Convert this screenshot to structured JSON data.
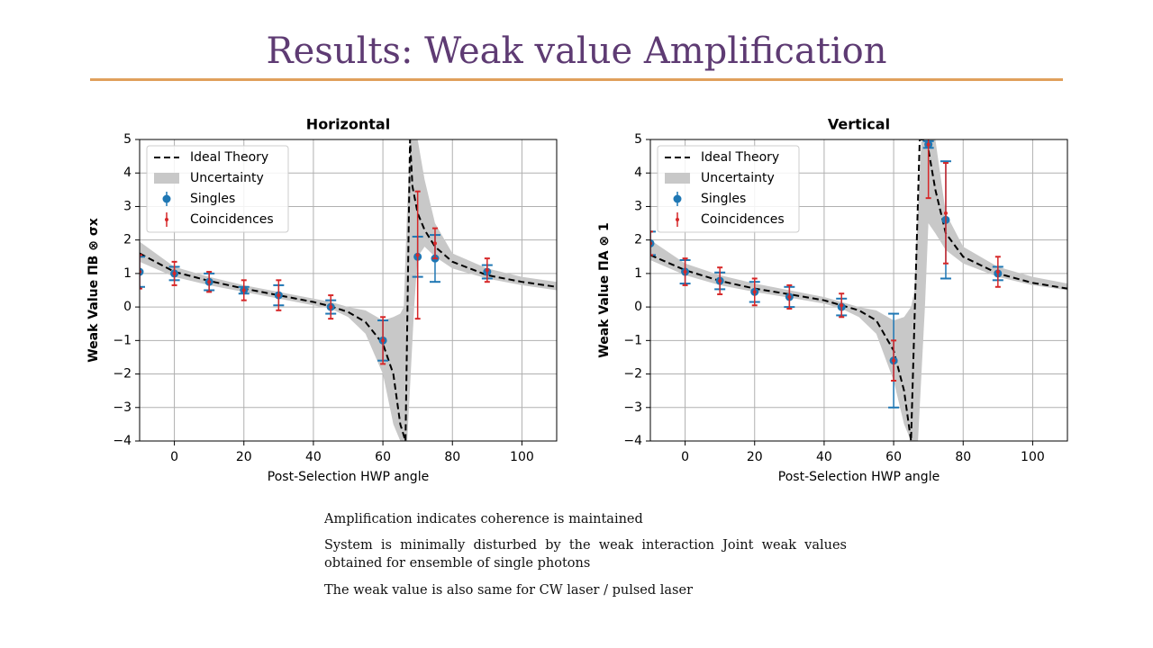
{
  "slide": {
    "title": "Results: Weak value Amplification",
    "paragraphs": [
      "Amplification indicates coherence is maintained",
      "System is minimally disturbed by the weak interaction Joint weak values obtained for ensemble of single photons",
      "The weak value is also same for CW laser / pulsed laser"
    ]
  },
  "chart_data": [
    {
      "type": "errorbar",
      "title": "Horizontal",
      "x_label": "Post-Selection HWP angle",
      "y_label": "Weak Value  ΠB ⊗ σx",
      "xlim": [
        -10,
        110
      ],
      "xticks": [
        0,
        20,
        40,
        60,
        80,
        100
      ],
      "ylim": [
        -4,
        5
      ],
      "yticks": [
        {
          "value": -4,
          "label": "−4"
        },
        {
          "value": -3,
          "label": "−3"
        },
        {
          "value": -2,
          "label": "−2"
        },
        {
          "value": -1,
          "label": "−1"
        },
        0,
        1,
        2,
        3,
        4,
        5
      ],
      "grid": true,
      "legend": "upper left",
      "series": [
        {
          "name": "Ideal Theory",
          "type": "line",
          "color": "#000000",
          "x": [
            -10,
            0,
            10,
            20,
            30,
            40,
            45,
            50,
            55,
            60,
            63,
            65,
            66.5,
            67.8,
            68.5,
            70,
            72,
            75,
            80,
            90,
            100,
            110
          ],
          "values": [
            1.6,
            1.05,
            0.78,
            0.55,
            0.35,
            0.15,
            0.02,
            -0.15,
            -0.45,
            -1.1,
            -2,
            -3.5,
            -4,
            5,
            3.6,
            2.8,
            2.3,
            1.8,
            1.35,
            0.95,
            0.75,
            0.6
          ]
        },
        {
          "name": "Uncertainty",
          "type": "band",
          "color": "#c8c8c8",
          "x": [
            -10,
            0,
            10,
            20,
            30,
            40,
            45,
            50,
            55,
            60,
            63,
            65,
            66,
            67,
            68,
            69,
            70,
            72,
            75,
            80,
            90,
            100,
            110
          ],
          "lower": [
            1.35,
            0.9,
            0.65,
            0.45,
            0.25,
            0.05,
            -0.05,
            -0.3,
            -0.8,
            -2,
            -3.5,
            -4,
            -4,
            -4,
            -2,
            0,
            1.5,
            1.8,
            1.5,
            1.15,
            0.85,
            0.65,
            0.5
          ],
          "upper": [
            1.95,
            1.2,
            0.9,
            0.65,
            0.45,
            0.25,
            0.15,
            0,
            -0.1,
            -0.4,
            -0.3,
            -0.2,
            0,
            3,
            5,
            5,
            5,
            3.8,
            2.5,
            1.6,
            1.15,
            0.9,
            0.75
          ]
        },
        {
          "name": "Singles",
          "type": "points",
          "color": "#1f77b4",
          "x": [
            -10,
            0,
            10,
            20,
            30,
            45,
            60,
            70,
            75,
            90
          ],
          "values": [
            1.05,
            1.0,
            0.75,
            0.5,
            0.35,
            0.0,
            -1.0,
            1.5,
            1.45,
            1.05
          ],
          "errors": [
            0.45,
            0.2,
            0.25,
            0.1,
            0.3,
            0.2,
            0.6,
            0.6,
            0.7,
            0.2
          ]
        },
        {
          "name": "Coincidences",
          "type": "points",
          "color": "#d62728",
          "x": [
            -10,
            0,
            10,
            20,
            30,
            45,
            60,
            70,
            75,
            90
          ],
          "values": [
            1.05,
            1.0,
            0.75,
            0.5,
            0.35,
            0.0,
            -1.0,
            1.55,
            1.9,
            1.1
          ],
          "errors": [
            0.5,
            0.35,
            0.3,
            0.3,
            0.45,
            0.35,
            0.7,
            1.9,
            0.45,
            0.35
          ]
        }
      ]
    },
    {
      "type": "errorbar",
      "title": "Vertical",
      "x_label": "Post-Selection HWP angle",
      "y_label": "Weak Value  ΠA ⊗ 1",
      "xlim": [
        -10,
        110
      ],
      "xticks": [
        0,
        20,
        40,
        60,
        80,
        100
      ],
      "ylim": [
        -4,
        5
      ],
      "yticks": [
        {
          "value": -4,
          "label": "−4"
        },
        {
          "value": -3,
          "label": "−3"
        },
        {
          "value": -2,
          "label": "−2"
        },
        {
          "value": -1,
          "label": "−1"
        },
        0,
        1,
        2,
        3,
        4,
        5
      ],
      "grid": true,
      "legend": "upper left",
      "series": [
        {
          "name": "Ideal Theory",
          "type": "line",
          "color": "#000000",
          "x": [
            -10,
            0,
            10,
            20,
            30,
            40,
            45,
            50,
            55,
            60,
            63,
            65,
            67.5,
            69.5,
            72,
            75,
            80,
            90,
            100,
            110
          ],
          "values": [
            1.55,
            1.1,
            0.78,
            0.55,
            0.38,
            0.2,
            0.05,
            -0.1,
            -0.4,
            -1.3,
            -2.5,
            -4,
            5,
            5,
            3.5,
            2.2,
            1.5,
            1.0,
            0.72,
            0.55
          ]
        },
        {
          "name": "Uncertainty",
          "type": "band",
          "color": "#c8c8c8",
          "x": [
            -10,
            0,
            10,
            20,
            30,
            40,
            45,
            50,
            55,
            60,
            63,
            65,
            66,
            67,
            68,
            69,
            70,
            72,
            75,
            80,
            90,
            100,
            110
          ],
          "lower": [
            1.4,
            0.95,
            0.65,
            0.45,
            0.28,
            0.1,
            -0.05,
            -0.3,
            -0.8,
            -2.2,
            -3.5,
            -4,
            -4,
            -4,
            -2,
            0,
            2.5,
            2.2,
            1.7,
            1.3,
            0.9,
            0.65,
            0.5
          ],
          "upper": [
            2.0,
            1.3,
            0.95,
            0.7,
            0.5,
            0.3,
            0.15,
            0.0,
            -0.1,
            -0.4,
            -0.3,
            0,
            0.5,
            3,
            5,
            5,
            5,
            5,
            2.8,
            1.8,
            1.2,
            0.9,
            0.7
          ]
        },
        {
          "name": "Singles",
          "type": "points",
          "color": "#1f77b4",
          "x": [
            -10,
            0,
            10,
            20,
            30,
            45,
            60,
            70,
            75,
            90
          ],
          "values": [
            1.9,
            1.05,
            0.78,
            0.45,
            0.3,
            0.0,
            -1.6,
            4.85,
            2.6,
            1.0
          ],
          "errors": [
            0.35,
            0.35,
            0.25,
            0.3,
            0.3,
            0.25,
            1.4,
            0.1,
            1.75,
            0.2
          ]
        },
        {
          "name": "Coincidences",
          "type": "points",
          "color": "#d62728",
          "x": [
            -10,
            0,
            10,
            20,
            30,
            45,
            60,
            70,
            75,
            90
          ],
          "values": [
            1.9,
            1.05,
            0.78,
            0.45,
            0.3,
            0.05,
            -1.6,
            4.85,
            2.8,
            1.05
          ],
          "errors": [
            0.35,
            0.4,
            0.4,
            0.4,
            0.35,
            0.35,
            0.6,
            1.6,
            1.5,
            0.45
          ]
        }
      ]
    }
  ]
}
